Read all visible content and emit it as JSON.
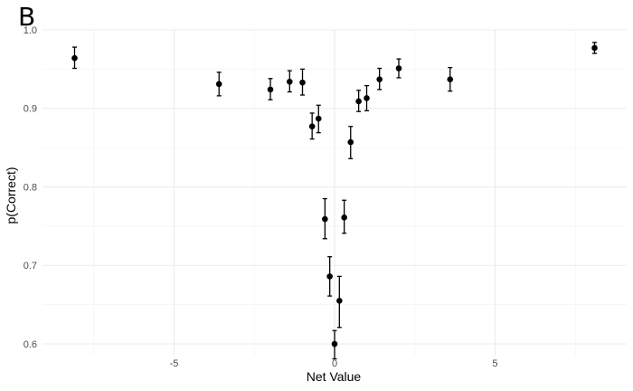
{
  "panel_label": "B",
  "chart_data": {
    "type": "scatter",
    "title": "",
    "xlabel": "Net Value",
    "ylabel": "p(Correct)",
    "xlim": [
      -9.1,
      9.1
    ],
    "ylim": [
      0.585,
      1.0
    ],
    "x_ticks": [
      -5,
      0,
      5
    ],
    "x_tick_labels": [
      "-5",
      "0",
      "5"
    ],
    "y_ticks": [
      0.6,
      0.7,
      0.8,
      0.9,
      1.0
    ],
    "y_tick_labels": [
      "0.6",
      "0.7",
      "0.8",
      "0.9",
      "1.0"
    ],
    "grid": true,
    "error_bars": true,
    "colors": {
      "points": "#000000",
      "grid_major": "#ebebeb",
      "grid_minor": "#f4f4f4"
    },
    "points": [
      {
        "x": -8.1,
        "y": 0.964,
        "ymin": 0.951,
        "ymax": 0.978
      },
      {
        "x": -3.6,
        "y": 0.931,
        "ymin": 0.916,
        "ymax": 0.946
      },
      {
        "x": -2.0,
        "y": 0.924,
        "ymin": 0.911,
        "ymax": 0.938
      },
      {
        "x": -1.4,
        "y": 0.934,
        "ymin": 0.921,
        "ymax": 0.948
      },
      {
        "x": -1.0,
        "y": 0.933,
        "ymin": 0.917,
        "ymax": 0.95
      },
      {
        "x": -0.7,
        "y": 0.877,
        "ymin": 0.861,
        "ymax": 0.894
      },
      {
        "x": -0.5,
        "y": 0.887,
        "ymin": 0.869,
        "ymax": 0.904
      },
      {
        "x": -0.3,
        "y": 0.759,
        "ymin": 0.734,
        "ymax": 0.785
      },
      {
        "x": -0.15,
        "y": 0.686,
        "ymin": 0.661,
        "ymax": 0.711
      },
      {
        "x": 0.0,
        "y": 0.6,
        "ymin": 0.581,
        "ymax": 0.617
      },
      {
        "x": 0.15,
        "y": 0.655,
        "ymin": 0.621,
        "ymax": 0.686
      },
      {
        "x": 0.3,
        "y": 0.761,
        "ymin": 0.741,
        "ymax": 0.783
      },
      {
        "x": 0.5,
        "y": 0.857,
        "ymin": 0.836,
        "ymax": 0.877
      },
      {
        "x": 0.75,
        "y": 0.909,
        "ymin": 0.896,
        "ymax": 0.923
      },
      {
        "x": 1.0,
        "y": 0.913,
        "ymin": 0.897,
        "ymax": 0.929
      },
      {
        "x": 1.4,
        "y": 0.937,
        "ymin": 0.924,
        "ymax": 0.951
      },
      {
        "x": 2.0,
        "y": 0.951,
        "ymin": 0.939,
        "ymax": 0.963
      },
      {
        "x": 3.6,
        "y": 0.937,
        "ymin": 0.922,
        "ymax": 0.952
      },
      {
        "x": 8.1,
        "y": 0.977,
        "ymin": 0.97,
        "ymax": 0.984
      }
    ]
  }
}
